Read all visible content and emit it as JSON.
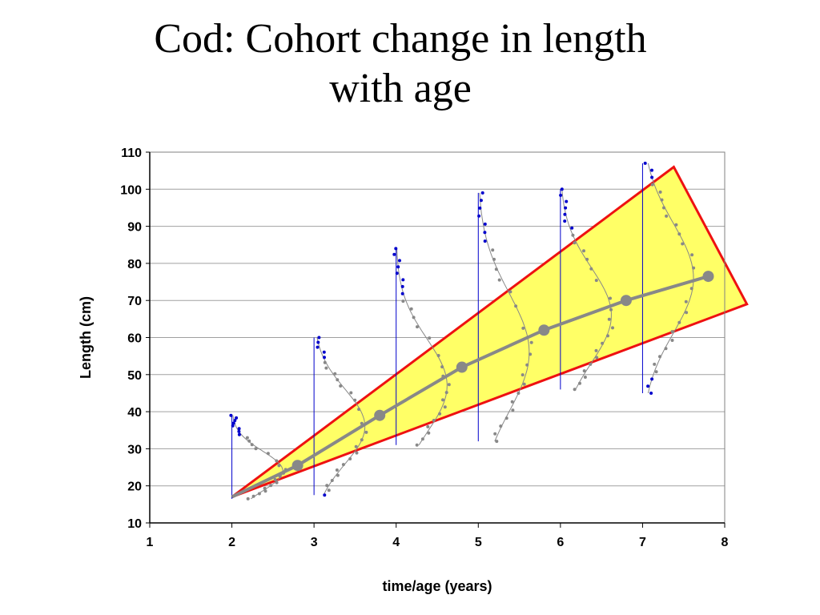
{
  "slide": {
    "title_line1": "Cod: Cohort change in length",
    "title_line2": "with age"
  },
  "chart_data": {
    "type": "scatter",
    "title": "Cod: Cohort change in length with age",
    "xlabel": "time/age (years)",
    "ylabel": "Length (cm)",
    "xlim": [
      1,
      8
    ],
    "ylim": [
      10,
      110
    ],
    "xticks": [
      1,
      2,
      3,
      4,
      5,
      6,
      7,
      8
    ],
    "yticks": [
      10,
      20,
      30,
      40,
      50,
      60,
      70,
      80,
      90,
      100,
      110
    ],
    "grid": "horizontal",
    "colors": {
      "length_distribution_blue": "#0000cc",
      "length_distribution_grey": "#888888",
      "cohort_mean": "#888888",
      "highlight_fill": "#ffff66",
      "highlight_edge": "#ee1111"
    },
    "cohort_mean_series": {
      "x": [
        2.0,
        2.8,
        3.8,
        4.8,
        5.8,
        6.8,
        7.8
      ],
      "y": [
        17,
        25.5,
        39,
        52,
        62,
        70,
        76.5
      ]
    },
    "highlight_triangle": {
      "x": [
        2.0,
        7.38,
        8.27
      ],
      "y": [
        17,
        106,
        69
      ]
    },
    "length_distributions": [
      {
        "age": 2,
        "min": 16.5,
        "max": 39,
        "mode": 24
      },
      {
        "age": 3,
        "min": 17.5,
        "max": 60,
        "mode": 36
      },
      {
        "age": 4,
        "min": 31,
        "max": 84,
        "mode": 47
      },
      {
        "age": 5,
        "min": 32,
        "max": 99,
        "mode": 56
      },
      {
        "age": 6,
        "min": 46,
        "max": 100,
        "mode": 66
      },
      {
        "age": 7,
        "min": 45,
        "max": 107,
        "mode": 76
      }
    ]
  }
}
